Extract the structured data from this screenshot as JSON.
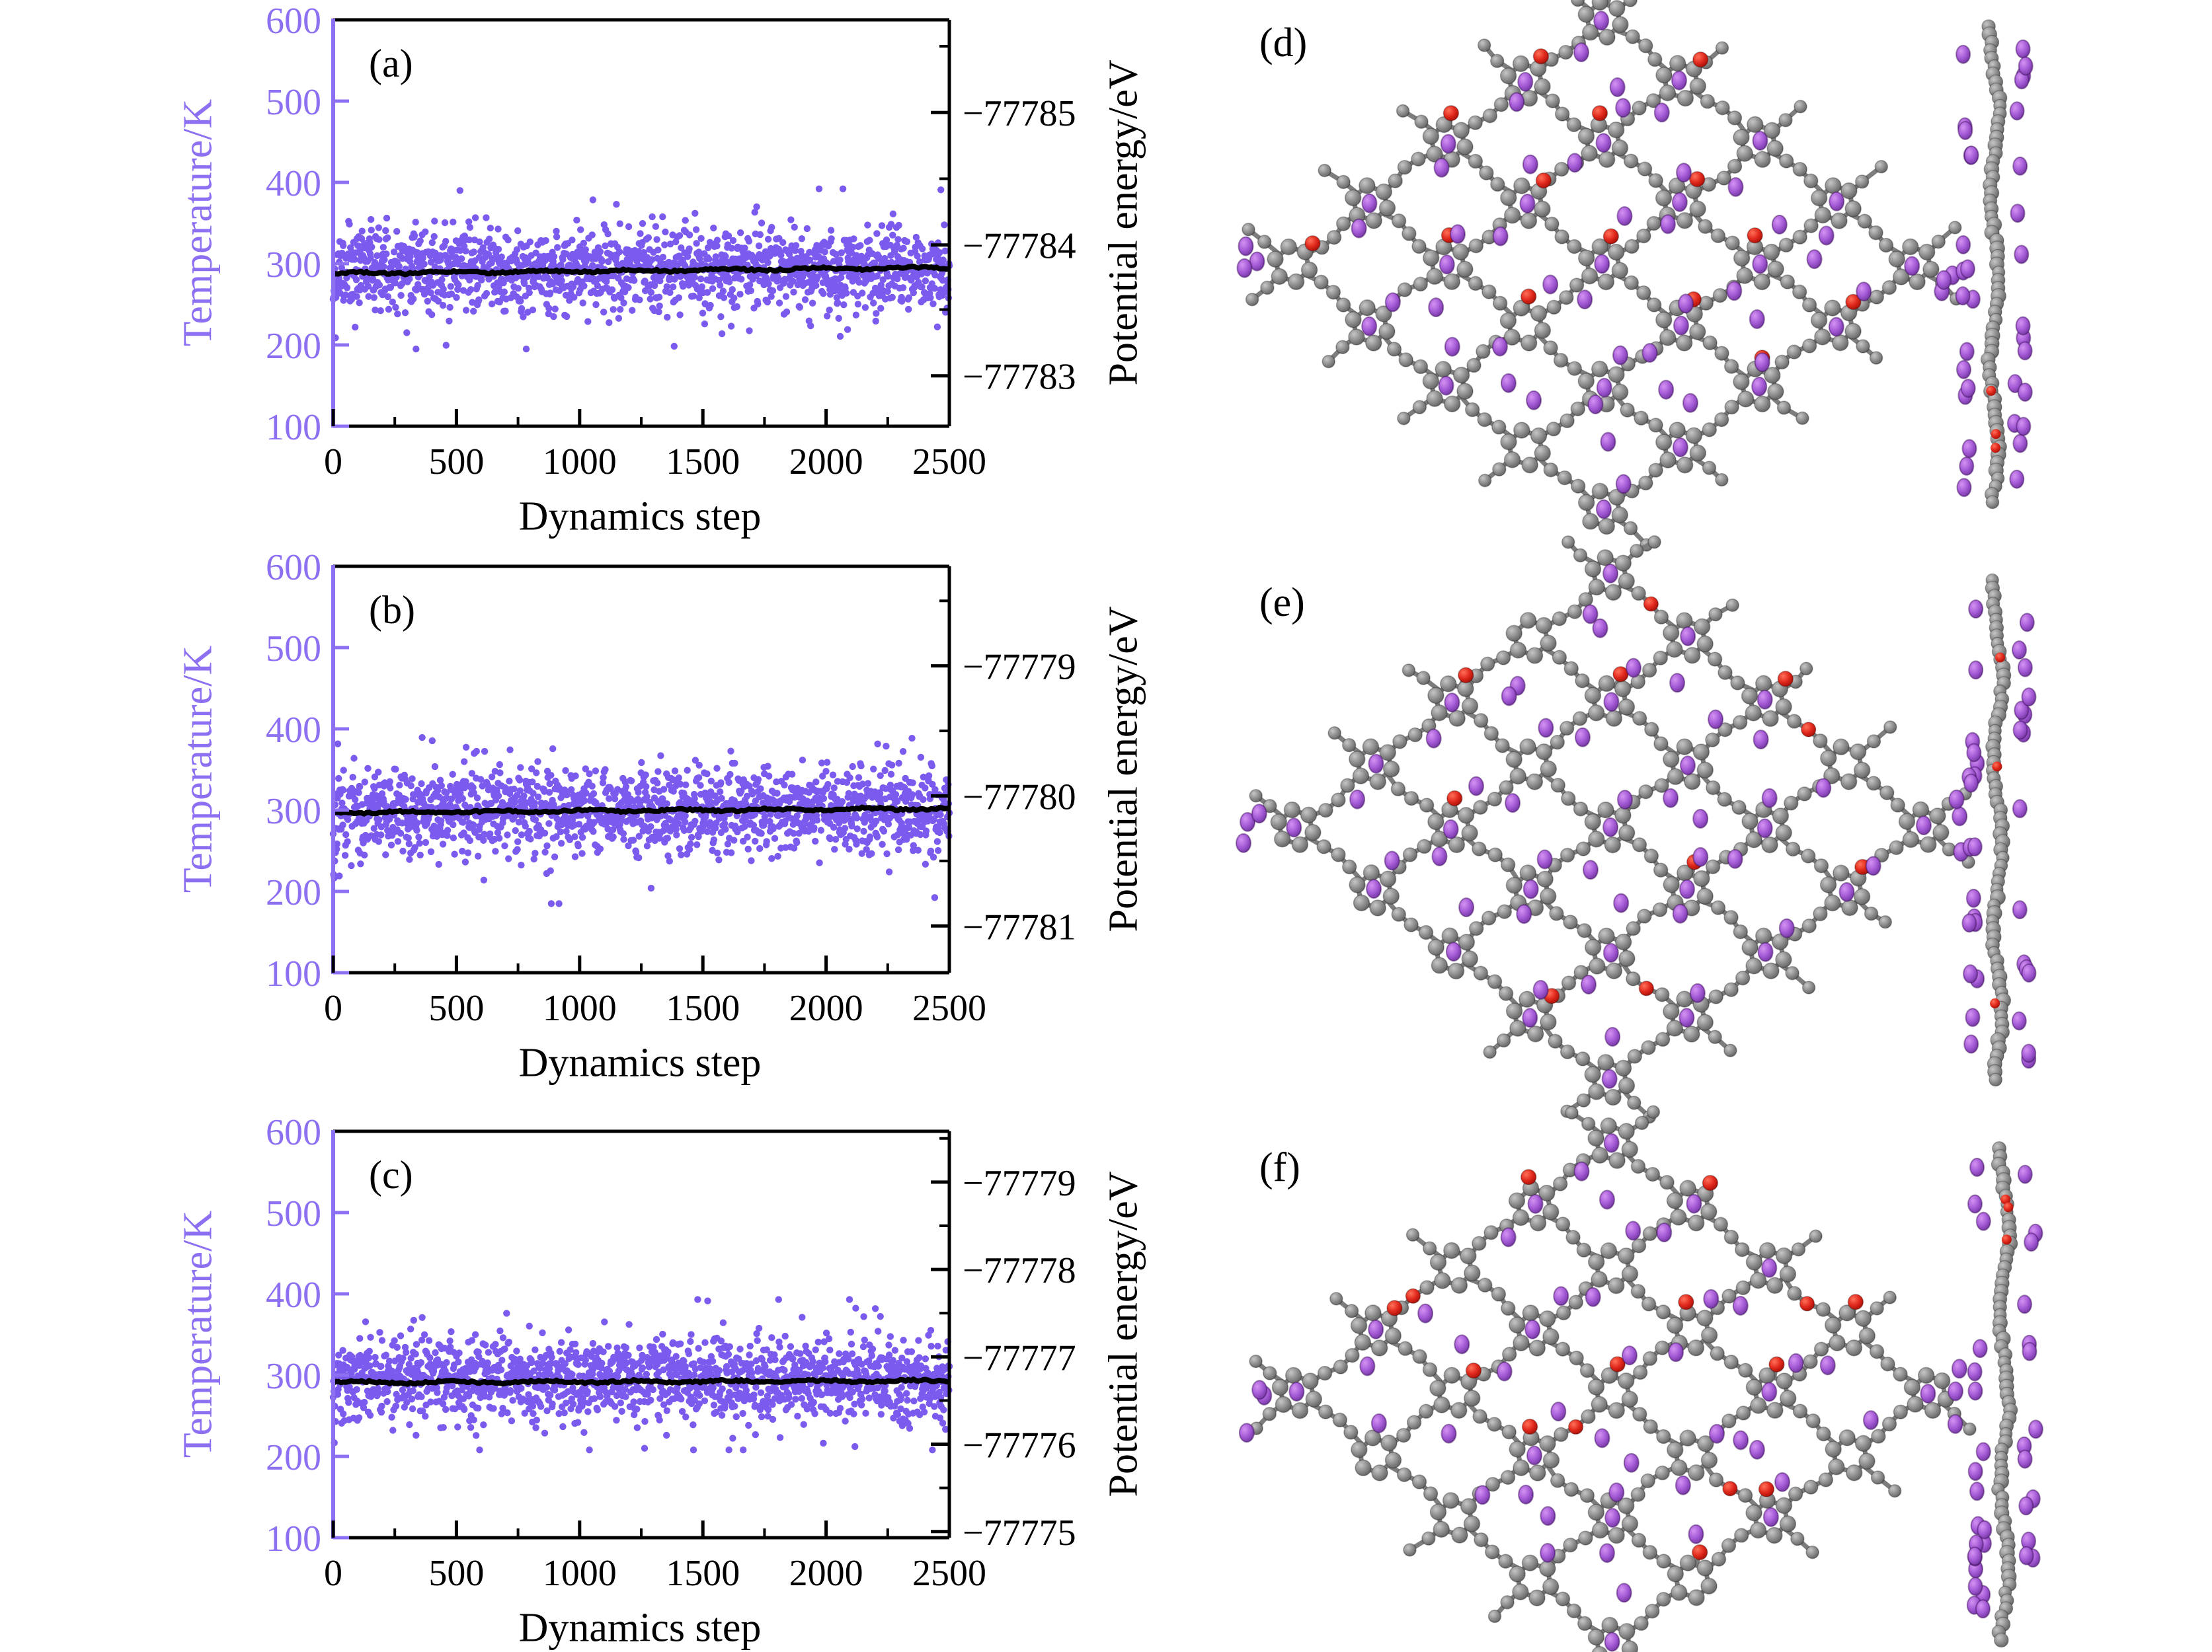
{
  "colors": {
    "temperature_purple": "#7b5aee",
    "axis_purple": "#8d6ff2",
    "line_black": "#000000",
    "atom_carbon_gray": "#8f8f8f",
    "atom_oxygen_red": "#e03226",
    "atom_metal_violet": "#a95fd8",
    "background": "#ffffff"
  },
  "left_panels": [
    {
      "id": "a",
      "label": "(a)",
      "xlabel": "Dynamics step",
      "ylabel_left": "Temperature/K",
      "ylabel_right": "Potential energy/eV"
    },
    {
      "id": "b",
      "label": "(b)",
      "xlabel": "Dynamics step",
      "ylabel_left": "Temperature/K",
      "ylabel_right": "Potential energy/eV"
    },
    {
      "id": "c",
      "label": "(c)",
      "xlabel": "Dynamics step",
      "ylabel_left": "Temperature/K",
      "ylabel_right": "Potential energy/eV"
    }
  ],
  "right_panels": [
    {
      "id": "d",
      "label": "(d)"
    },
    {
      "id": "e",
      "label": "(e)"
    },
    {
      "id": "f",
      "label": "(f)"
    }
  ],
  "chart_data": [
    {
      "panel": "a",
      "type": "scatter",
      "xlabel": "Dynamics step",
      "x_range": [
        0,
        2500
      ],
      "x_ticks": [
        0,
        500,
        1000,
        1500,
        2000,
        2500
      ],
      "y_left": {
        "label": "Temperature/K",
        "top": 600,
        "bottom": 100,
        "ticks": [
          600,
          500,
          400,
          300,
          200,
          100
        ]
      },
      "y_right": {
        "label": "Potential energy/eV",
        "inverted": true,
        "ticks": [
          {
            "label": "−77785",
            "value": -77785,
            "pos": 0.228
          },
          {
            "label": "−77784",
            "value": -77784,
            "pos": 0.554
          },
          {
            "label": "−77783",
            "value": -77783,
            "pos": 0.876
          }
        ]
      },
      "series": [
        {
          "name": "temperature",
          "style": "scatter-dots",
          "n_points": 2500,
          "mean_K": 293,
          "std_K": 25,
          "min_K": 195,
          "max_K": 392,
          "startup_dip_K": [
            200,
            310
          ]
        },
        {
          "name": "potential-energy",
          "style": "line",
          "approx_eV": -77783.8,
          "equiv_K_start": 288,
          "equiv_K_end": 295
        }
      ]
    },
    {
      "panel": "b",
      "type": "scatter",
      "xlabel": "Dynamics step",
      "x_range": [
        0,
        2500
      ],
      "x_ticks": [
        0,
        500,
        1000,
        1500,
        2000,
        2500
      ],
      "y_left": {
        "label": "Temperature/K",
        "top": 600,
        "bottom": 100,
        "ticks": [
          600,
          500,
          400,
          300,
          200,
          100
        ]
      },
      "y_right": {
        "label": "Potential energy/eV",
        "inverted": false,
        "ticks": [
          {
            "label": "−77779",
            "value": -77779,
            "pos": 0.245
          },
          {
            "label": "−77780",
            "value": -77780,
            "pos": 0.565
          },
          {
            "label": "−77781",
            "value": -77781,
            "pos": 0.885
          }
        ]
      },
      "series": [
        {
          "name": "temperature",
          "style": "scatter-dots",
          "n_points": 2500,
          "mean_K": 300,
          "std_K": 26,
          "min_K": 185,
          "max_K": 392,
          "startup_dip_K": [
            190,
            320
          ]
        },
        {
          "name": "potential-energy",
          "style": "line",
          "approx_eV": -77780.1,
          "equiv_K_start": 297,
          "equiv_K_end": 302
        }
      ]
    },
    {
      "panel": "c",
      "type": "scatter",
      "xlabel": "Dynamics step",
      "x_range": [
        0,
        2500
      ],
      "x_ticks": [
        0,
        500,
        1000,
        1500,
        2000,
        2500
      ],
      "y_left": {
        "label": "Temperature/K",
        "top": 600,
        "bottom": 100,
        "ticks": [
          600,
          500,
          400,
          300,
          200,
          100
        ]
      },
      "y_right": {
        "label": "Potential energy/eV",
        "inverted": false,
        "ticks": [
          {
            "label": "−77779",
            "value": -77779,
            "pos": 0.125
          },
          {
            "label": "−77778",
            "value": -77778,
            "pos": 0.34
          },
          {
            "label": "−77777",
            "value": -77777,
            "pos": 0.555
          },
          {
            "label": "−77776",
            "value": -77776,
            "pos": 0.77
          },
          {
            "label": "−77775",
            "value": -77775,
            "pos": 0.985
          }
        ]
      },
      "series": [
        {
          "name": "temperature",
          "style": "scatter-dots",
          "n_points": 2500,
          "mean_K": 296,
          "std_K": 25,
          "min_K": 208,
          "max_K": 393,
          "startup_dip_K": [
            215,
            320
          ]
        },
        {
          "name": "potential-energy",
          "style": "line",
          "approx_eV": -77777.3,
          "equiv_K_start": 291,
          "equiv_K_end": 293
        }
      ]
    }
  ],
  "molecule_panels": [
    {
      "id": "d",
      "label": "(d)",
      "views": [
        "top-view-framework",
        "side-view-sheet"
      ],
      "atoms": {
        "framework": "carbon-gray",
        "oxygen": "red",
        "adatom": "metal-violet"
      }
    },
    {
      "id": "e",
      "label": "(e)",
      "views": [
        "top-view-framework",
        "side-view-sheet"
      ],
      "atoms": {
        "framework": "carbon-gray",
        "oxygen": "red",
        "adatom": "metal-violet"
      }
    },
    {
      "id": "f",
      "label": "(f)",
      "views": [
        "top-view-framework",
        "side-view-sheet"
      ],
      "atoms": {
        "framework": "carbon-gray",
        "oxygen": "red",
        "adatom": "metal-violet"
      }
    }
  ]
}
